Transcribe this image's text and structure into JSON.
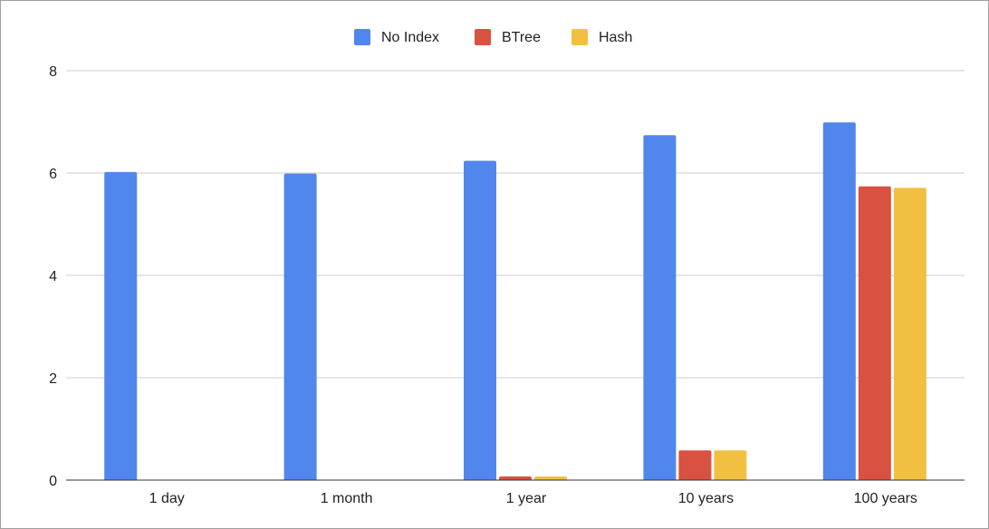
{
  "chart_data": {
    "type": "bar",
    "categories": [
      "1 day",
      "1 month",
      "1 year",
      "10 years",
      "100 years"
    ],
    "series": [
      {
        "name": "No Index",
        "color": "#5186ec",
        "values": [
          6.02,
          5.99,
          6.24,
          6.74,
          6.99
        ]
      },
      {
        "name": "BTree",
        "color": "#d95140",
        "values": [
          0,
          0,
          0.07,
          0.58,
          5.74
        ]
      },
      {
        "name": "Hash",
        "color": "#f1c040",
        "values": [
          0,
          0,
          0.07,
          0.58,
          5.71
        ]
      }
    ],
    "ylim": [
      0,
      8
    ],
    "yticks": [
      "0",
      "2",
      "4",
      "6",
      "8"
    ],
    "ytick_values": [
      0,
      2,
      4,
      6,
      8
    ],
    "grid": true,
    "legend_position": "top-center"
  }
}
